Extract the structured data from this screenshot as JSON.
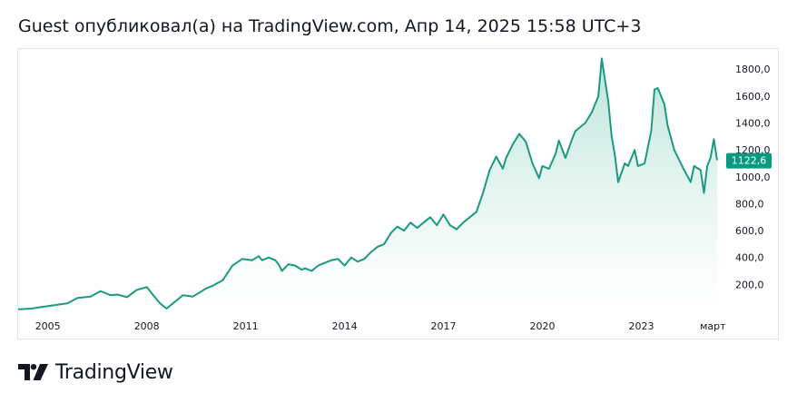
{
  "header": {
    "title": "Guest опубликовал(а) на TradingView.com, Апр 14, 2025 15:58 UTC+3"
  },
  "brand": {
    "name": "TradingView",
    "logo_icon": "tradingview-logo-icon"
  },
  "colors": {
    "line": "#1b9a7f",
    "area_top": "#b8e3d7",
    "area_bottom": "#ffffff",
    "badge_bg": "#089981",
    "badge_text": "#ffffff",
    "axis_text": "#131722",
    "border": "#e0e3eb"
  },
  "chart_data": {
    "type": "area",
    "title": "",
    "xlabel": "",
    "ylabel": "",
    "ylim": [
      0,
      1950
    ],
    "xlim": [
      2004.1,
      2025.3
    ],
    "x_ticks": [
      {
        "label": "2005",
        "value": 2005.0
      },
      {
        "label": "2008",
        "value": 2008.0
      },
      {
        "label": "2011",
        "value": 2011.0
      },
      {
        "label": "2014",
        "value": 2014.0
      },
      {
        "label": "2017",
        "value": 2017.0
      },
      {
        "label": "2020",
        "value": 2020.0
      },
      {
        "label": "2023",
        "value": 2023.0
      },
      {
        "label": "март",
        "value": 2025.17
      }
    ],
    "y_ticks": [
      {
        "label": "200,0",
        "value": 200
      },
      {
        "label": "400,0",
        "value": 400
      },
      {
        "label": "600,0",
        "value": 600
      },
      {
        "label": "800,0",
        "value": 800
      },
      {
        "label": "1000,0",
        "value": 1000
      },
      {
        "label": "1200,0",
        "value": 1200
      },
      {
        "label": "1400,0",
        "value": 1400
      },
      {
        "label": "1600,0",
        "value": 1600
      },
      {
        "label": "1800,0",
        "value": 1800
      }
    ],
    "last_value": {
      "label": "1122,6",
      "value": 1122.6
    },
    "series": [
      {
        "name": "price",
        "x": [
          2004.1,
          2004.5,
          2004.9,
          2005.2,
          2005.6,
          2005.9,
          2006.3,
          2006.6,
          2006.9,
          2007.1,
          2007.4,
          2007.7,
          2008.0,
          2008.2,
          2008.4,
          2008.6,
          2008.9,
          2009.1,
          2009.4,
          2009.6,
          2009.8,
          2010.0,
          2010.3,
          2010.6,
          2010.9,
          2011.2,
          2011.4,
          2011.5,
          2011.7,
          2011.9,
          2012.0,
          2012.1,
          2012.3,
          2012.5,
          2012.7,
          2012.8,
          2013.0,
          2013.2,
          2013.4,
          2013.6,
          2013.8,
          2014.0,
          2014.2,
          2014.4,
          2014.6,
          2014.8,
          2015.0,
          2015.2,
          2015.4,
          2015.6,
          2015.8,
          2016.0,
          2016.2,
          2016.4,
          2016.6,
          2016.8,
          2017.0,
          2017.2,
          2017.4,
          2017.6,
          2017.8,
          2018.0,
          2018.2,
          2018.4,
          2018.6,
          2018.8,
          2018.9,
          2019.1,
          2019.3,
          2019.5,
          2019.7,
          2019.9,
          2020.0,
          2020.2,
          2020.4,
          2020.5,
          2020.7,
          2020.9,
          2021.0,
          2021.1,
          2021.3,
          2021.5,
          2021.6,
          2021.7,
          2021.8,
          2021.9,
          2022.0,
          2022.1,
          2022.2,
          2022.3,
          2022.5,
          2022.6,
          2022.8,
          2022.9,
          2023.1,
          2023.3,
          2023.4,
          2023.5,
          2023.7,
          2023.8,
          2024.0,
          2024.2,
          2024.3,
          2024.5,
          2024.6,
          2024.8,
          2024.9,
          2025.0,
          2025.1,
          2025.2,
          2025.3
        ],
        "values": [
          15,
          20,
          35,
          45,
          60,
          100,
          110,
          150,
          120,
          125,
          105,
          160,
          180,
          120,
          60,
          20,
          80,
          120,
          110,
          140,
          170,
          190,
          230,
          340,
          390,
          380,
          410,
          380,
          400,
          380,
          350,
          300,
          350,
          340,
          310,
          320,
          300,
          340,
          360,
          380,
          390,
          340,
          400,
          370,
          390,
          440,
          480,
          500,
          580,
          630,
          600,
          660,
          620,
          660,
          700,
          640,
          720,
          640,
          610,
          660,
          700,
          740,
          880,
          1050,
          1150,
          1060,
          1140,
          1240,
          1320,
          1260,
          1100,
          990,
          1080,
          1060,
          1170,
          1270,
          1140,
          1280,
          1340,
          1360,
          1400,
          1480,
          1540,
          1600,
          1880,
          1720,
          1560,
          1300,
          1160,
          960,
          1100,
          1080,
          1200,
          1080,
          1100,
          1340,
          1650,
          1660,
          1540,
          1380,
          1200,
          1100,
          1050,
          960,
          1080,
          1050,
          880,
          1080,
          1140,
          1280,
          1122.6
        ]
      }
    ]
  }
}
